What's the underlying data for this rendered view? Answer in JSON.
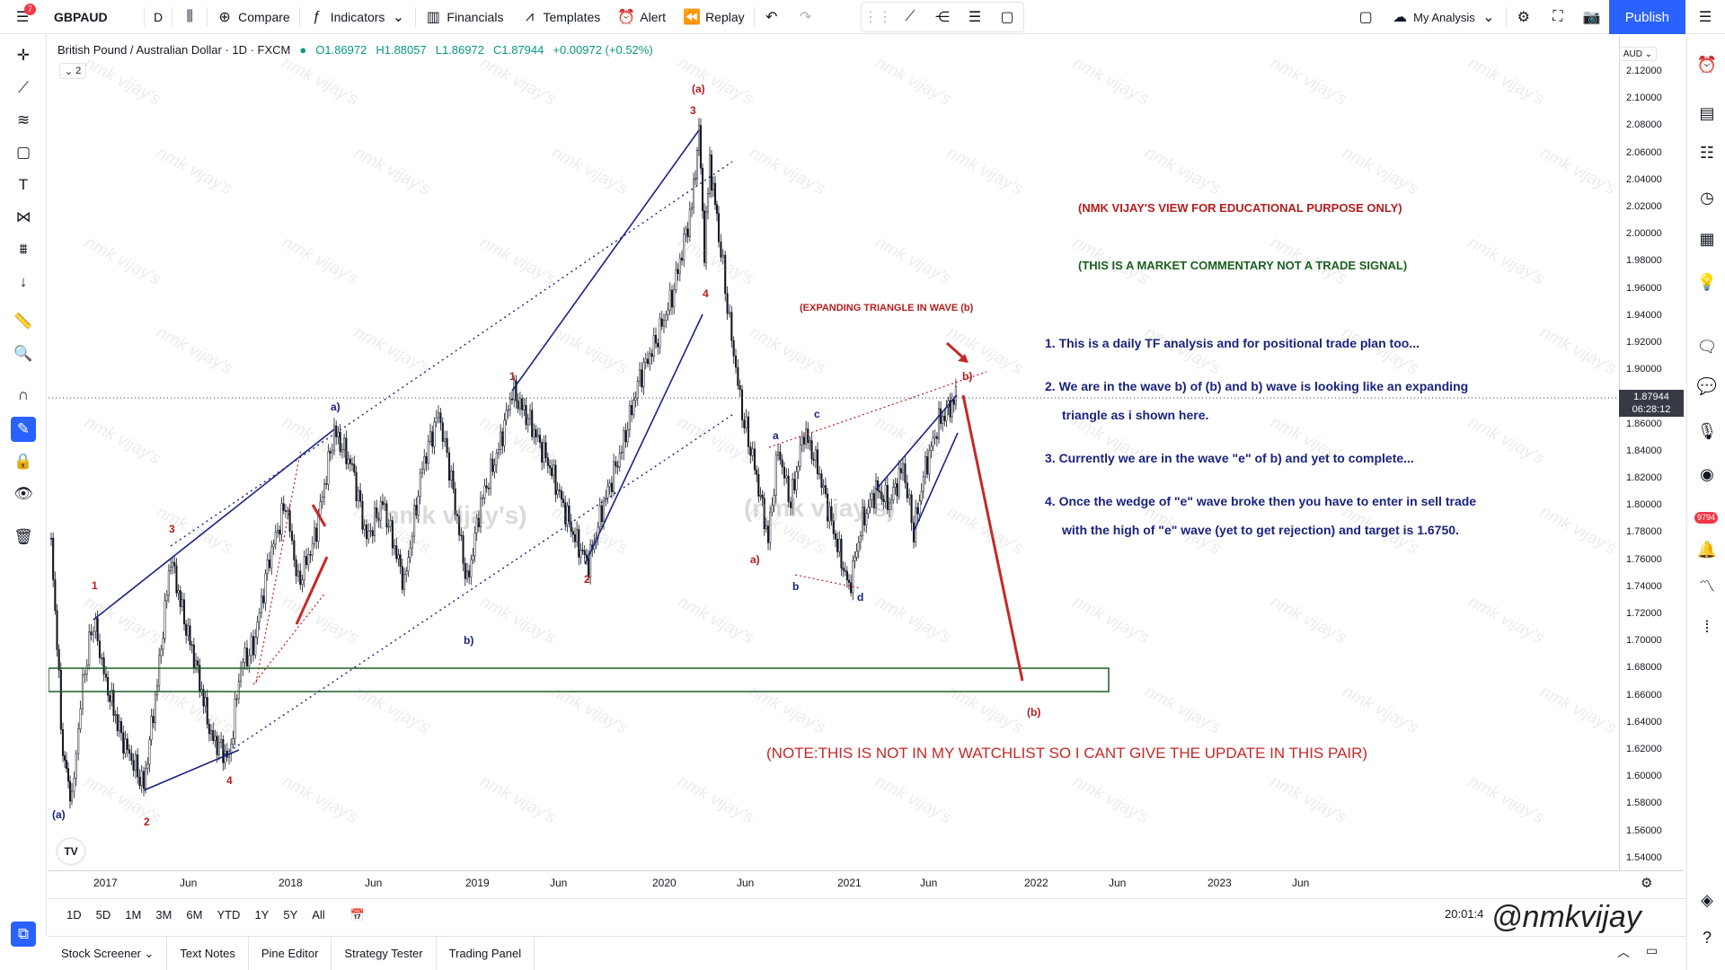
{
  "toolbar": {
    "menu_badge": "7",
    "symbol": "GBPAUD",
    "interval": "D",
    "compare": "Compare",
    "indicators": "Indicators",
    "financials": "Financials",
    "templates": "Templates",
    "alert": "Alert",
    "replay": "Replay",
    "layout_name": "My Analysis",
    "publish": "Publish"
  },
  "legend": {
    "title": "British Pound / Australian Dollar · 1D · FXCM",
    "open": "O1.86972",
    "high": "H1.88057",
    "low": "L1.86972",
    "close": "C1.87944",
    "change": "+0.00972 (+0.52%)",
    "toggle": "2"
  },
  "price_axis": {
    "currency": "AUD",
    "current_price": "1.87944",
    "countdown": "06:28:12",
    "labels": [
      "2.12000",
      "2.10000",
      "2.08000",
      "2.06000",
      "2.04000",
      "2.02000",
      "2.00000",
      "1.98000",
      "1.96000",
      "1.94000",
      "1.92000",
      "1.90000",
      "1.86000",
      "1.84000",
      "1.82000",
      "1.80000",
      "1.78000",
      "1.76000",
      "1.74000",
      "1.72000",
      "1.70000",
      "1.68000",
      "1.66000",
      "1.64000",
      "1.62000",
      "1.60000",
      "1.58000",
      "1.56000",
      "1.54000"
    ]
  },
  "time_axis": [
    "2017",
    "Jun",
    "2018",
    "Jun",
    "2019",
    "Jun",
    "2020",
    "Jun",
    "2021",
    "Jun",
    "2022",
    "Jun",
    "2023",
    "Jun"
  ],
  "range_buttons": [
    "1D",
    "5D",
    "1M",
    "3M",
    "6M",
    "YTD",
    "1Y",
    "5Y",
    "All"
  ],
  "clock": "20:01:4",
  "bottom_tabs": [
    "Stock Screener",
    "Text Notes",
    "Pine Editor",
    "Strategy Tester",
    "Trading Panel"
  ],
  "right_badge": "9794",
  "notes": {
    "disclaimer1": "(NMK VIJAY'S VIEW FOR EDUCATIONAL PURPOSE ONLY)",
    "disclaimer2": "(THIS IS A MARKET COMMENTARY NOT A TRADE SIGNAL)",
    "triangle": "(EXPANDING TRIANGLE IN WAVE (b)",
    "point1": "1. This is a daily TF analysis and for positional trade plan too...",
    "point2a": "2. We are in the wave b) of (b) and b) wave is looking like an expanding",
    "point2b": "triangle as i shown here.",
    "point3": "3. Currently we are in the wave \"e\" of b) and yet to complete...",
    "point4a": "4. Once the wedge of \"e\" wave broke then you have to enter in sell trade",
    "point4b": "with the high of \"e\" wave (yet to get rejection) and target is 1.6750.",
    "watchlist": "(NOTE:THIS IS NOT IN MY WATCHLIST SO I CANT GIVE THE UPDATE IN THIS PAIR)"
  },
  "wave_labels": {
    "a_big": "(a)",
    "a_top": "(a)",
    "w1": "1",
    "w3": "3",
    "w4": "4",
    "w2": "2",
    "a_paren": "a)",
    "b_paren": "b)",
    "i1": "1",
    "i2": "2",
    "i3": "3",
    "i4": "4",
    "a_small": "a",
    "c_small": "c",
    "b_small": "b",
    "d_small": "d",
    "a_paren2": "a)",
    "b_paren2": "b)",
    "b_target": "(b)"
  },
  "watermark_text": "nmk vijay's",
  "big_watermark": "(nmk vijay's)",
  "signature": "@nmkvijay",
  "tv_logo": "TV",
  "colors": {
    "accent": "#2962ff",
    "wave_red": "#b71c1c",
    "wave_blue": "#1a237e",
    "candle": "#131722",
    "box": "#1b5e20"
  }
}
